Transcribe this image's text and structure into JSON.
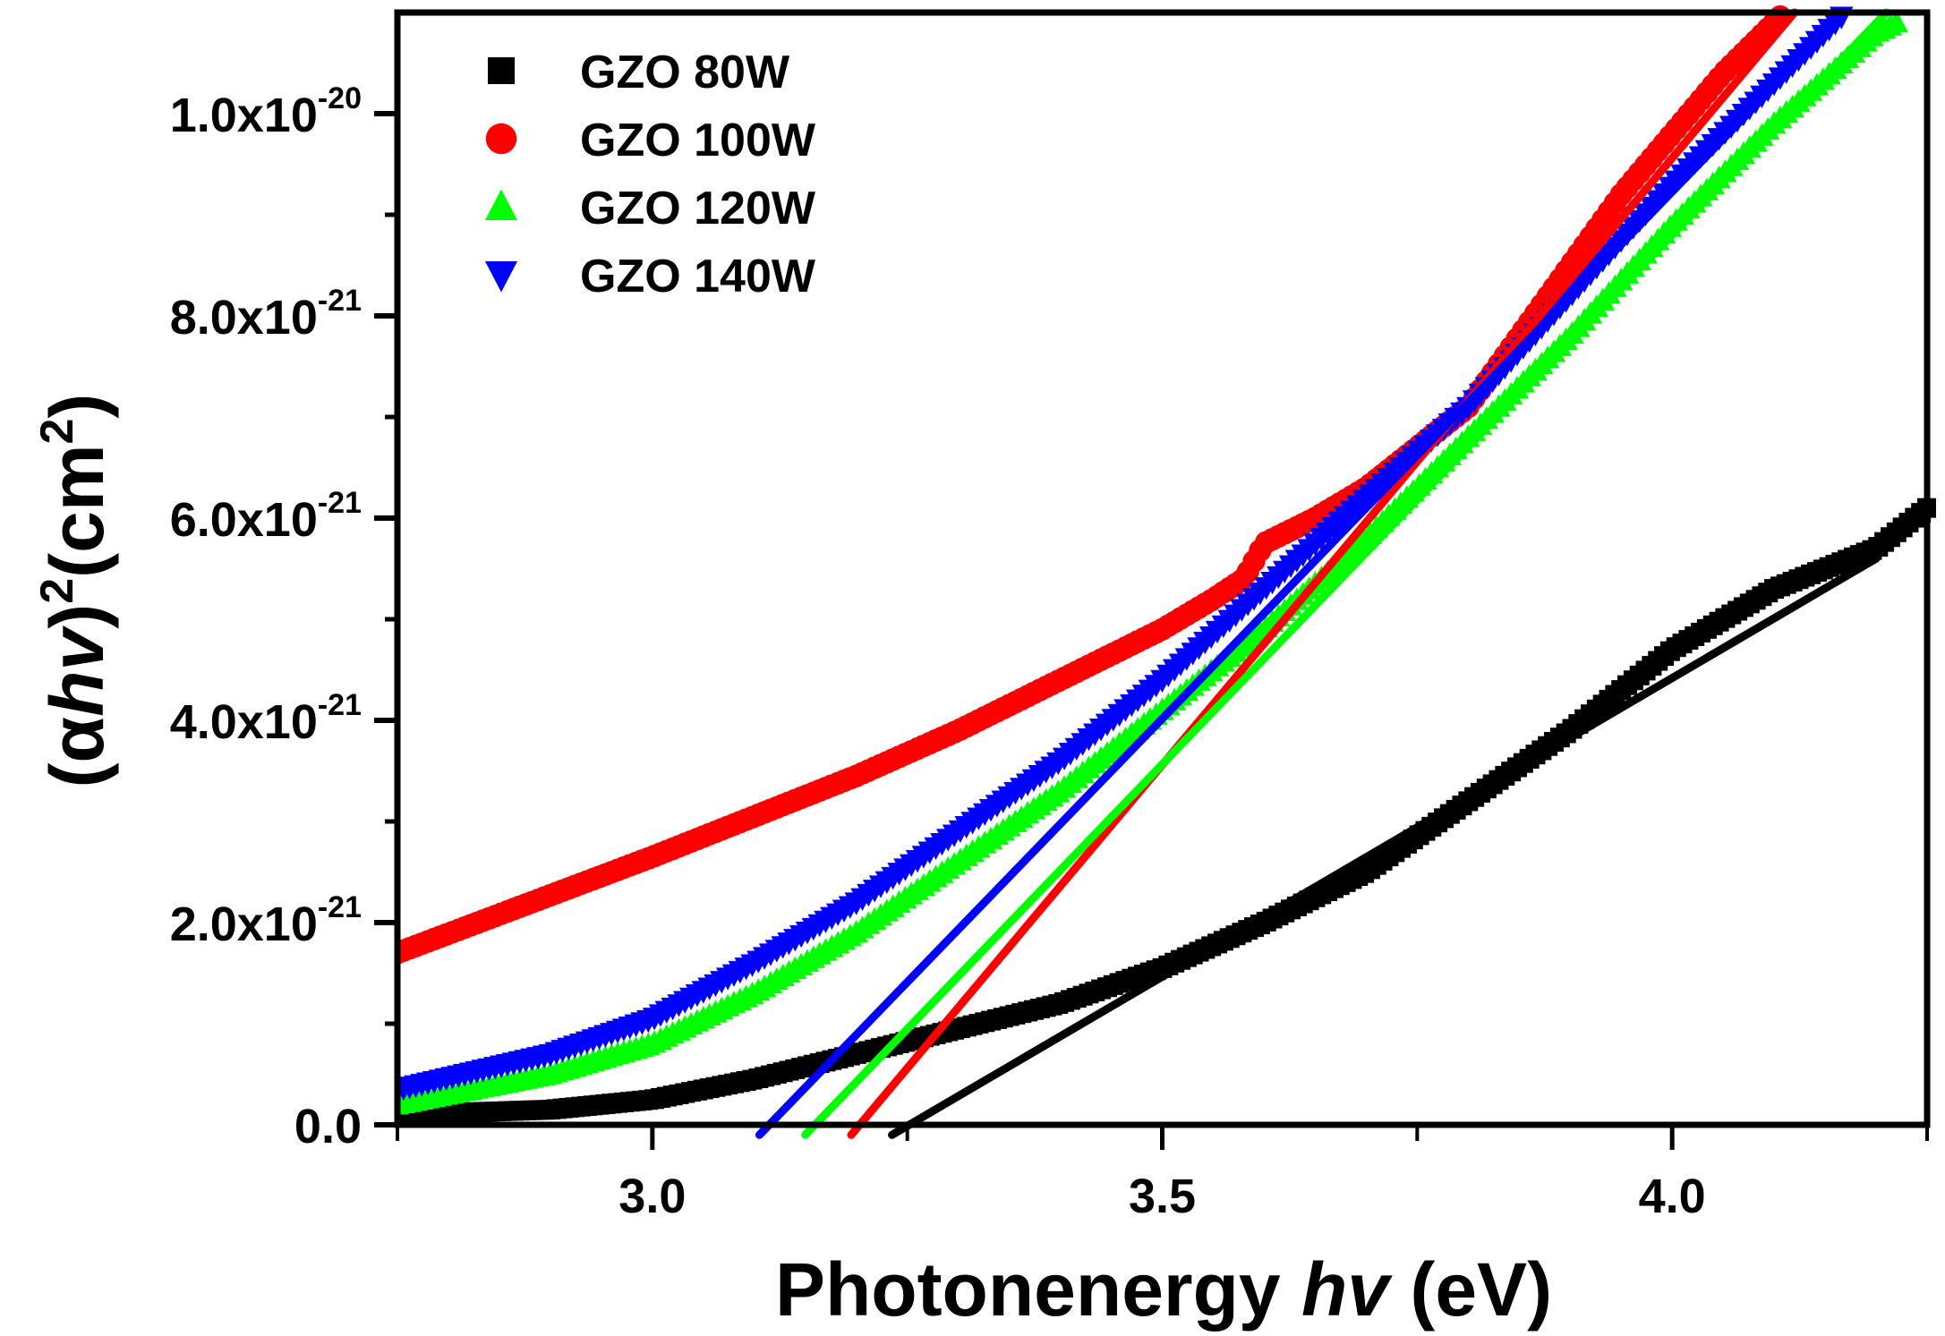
{
  "chart_data": {
    "type": "scatter",
    "title": "",
    "xlabel_parts": [
      "Photonenergy ",
      "hv",
      " (eV)"
    ],
    "ylabel_parts": [
      "(",
      "α",
      "hv",
      ")",
      "2",
      "(cm",
      "2",
      ")"
    ],
    "xlim": [
      2.75,
      4.25
    ],
    "ylim": [
      0,
      11
    ],
    "y_unit_multiplier": "1e-21",
    "grid": false,
    "legend_position": "top-left",
    "x_ticks": [
      {
        "value": 3.0,
        "label": "3.0"
      },
      {
        "value": 3.5,
        "label": "3.5"
      },
      {
        "value": 4.0,
        "label": "4.0"
      }
    ],
    "x_minor_ticks": [
      2.75,
      3.25,
      3.75,
      4.25
    ],
    "y_ticks": [
      {
        "value": 0,
        "base": "0.0",
        "exp": ""
      },
      {
        "value": 2,
        "base": "2.0x10",
        "exp": "-21"
      },
      {
        "value": 4,
        "base": "4.0x10",
        "exp": "-21"
      },
      {
        "value": 6,
        "base": "6.0x10",
        "exp": "-21"
      },
      {
        "value": 8,
        "base": "8.0x10",
        "exp": "-21"
      },
      {
        "value": 10,
        "base": "1.0x10",
        "exp": "-20"
      }
    ],
    "y_minor_ticks": [
      1,
      3,
      5,
      7,
      9
    ],
    "series": [
      {
        "name": "GZO 80W",
        "color": "#000000",
        "marker": "square",
        "x": [
          2.75,
          2.9,
          3.0,
          3.1,
          3.2,
          3.3,
          3.4,
          3.5,
          3.6,
          3.7,
          3.8,
          3.9,
          4.0,
          4.1,
          4.2,
          4.25
        ],
        "y": [
          0.1,
          0.15,
          0.25,
          0.45,
          0.7,
          0.95,
          1.2,
          1.55,
          2.0,
          2.5,
          3.2,
          3.9,
          4.7,
          5.3,
          5.7,
          6.1
        ],
        "fit": {
          "x": [
            3.235,
            4.2
          ],
          "y": [
            -0.1,
            5.6
          ]
        }
      },
      {
        "name": "GZO 100W",
        "color": "#ff0000",
        "marker": "circle",
        "x": [
          2.75,
          3.0,
          3.1,
          3.2,
          3.3,
          3.4,
          3.5,
          3.55,
          3.58,
          3.6,
          3.65,
          3.7,
          3.75,
          3.8,
          3.85,
          3.9,
          3.95,
          4.0,
          4.05,
          4.11
        ],
        "y": [
          1.7,
          2.65,
          3.05,
          3.45,
          3.9,
          4.4,
          4.9,
          5.2,
          5.4,
          5.75,
          6.0,
          6.3,
          6.7,
          7.1,
          7.8,
          8.5,
          9.2,
          9.8,
          10.4,
          11.0
        ],
        "fit": {
          "x": [
            3.195,
            4.12
          ],
          "y": [
            -0.1,
            11.0
          ]
        }
      },
      {
        "name": "GZO 120W",
        "color": "#00ff00",
        "marker": "triangle-up",
        "x": [
          2.75,
          2.9,
          3.0,
          3.1,
          3.2,
          3.3,
          3.4,
          3.5,
          3.6,
          3.7,
          3.8,
          3.9,
          4.0,
          4.1,
          4.2,
          4.22
        ],
        "y": [
          0.2,
          0.5,
          0.8,
          1.3,
          1.9,
          2.6,
          3.3,
          4.1,
          4.9,
          5.8,
          6.8,
          7.8,
          8.9,
          9.9,
          10.8,
          10.9
        ],
        "fit": {
          "x": [
            3.15,
            4.21
          ],
          "y": [
            -0.1,
            11.0
          ]
        }
      },
      {
        "name": "GZO 140W",
        "color": "#0000ff",
        "marker": "triangle-down",
        "x": [
          2.75,
          2.9,
          3.0,
          3.1,
          3.2,
          3.3,
          3.4,
          3.5,
          3.6,
          3.7,
          3.8,
          3.9,
          4.0,
          4.1,
          4.17
        ],
        "y": [
          0.35,
          0.7,
          1.05,
          1.6,
          2.2,
          2.9,
          3.6,
          4.4,
          5.3,
          6.2,
          7.1,
          8.2,
          9.3,
          10.3,
          11.0
        ],
        "fit": {
          "x": [
            3.105,
            4.17
          ],
          "y": [
            -0.1,
            11.0
          ]
        }
      }
    ]
  }
}
